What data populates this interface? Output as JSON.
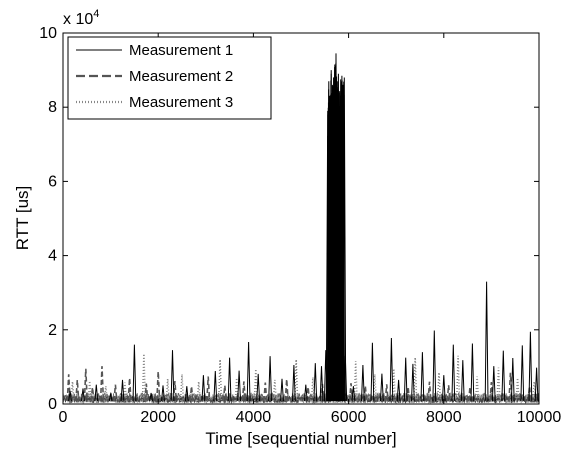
{
  "chart_data": {
    "type": "line",
    "xlabel": "Time [sequential number]",
    "ylabel": "RTT [us]",
    "y_multiplier_label": "x 10",
    "y_multiplier_exponent": "4",
    "xlim": [
      0,
      10000
    ],
    "ylim": [
      0,
      100000
    ],
    "x_ticks": [
      {
        "value": 0,
        "label": "0"
      },
      {
        "value": 2000,
        "label": "2000"
      },
      {
        "value": 4000,
        "label": "4000"
      },
      {
        "value": 6000,
        "label": "6000"
      },
      {
        "value": 8000,
        "label": "8000"
      },
      {
        "value": 10000,
        "label": "10000"
      }
    ],
    "y_ticks": [
      {
        "value": 0,
        "label": "0"
      },
      {
        "value": 20000,
        "label": "2"
      },
      {
        "value": 40000,
        "label": "4"
      },
      {
        "value": 60000,
        "label": "6"
      },
      {
        "value": 80000,
        "label": "8"
      },
      {
        "value": 100000,
        "label": "10"
      }
    ],
    "grid": false,
    "legend_position": "top-left",
    "baseline_rtt": [
      300,
      2000
    ],
    "series": [
      {
        "name": "Measurement 1",
        "style": "solid",
        "color": "#000000",
        "spikes": [
          [
            150,
            3500
          ],
          [
            420,
            4200
          ],
          [
            700,
            5200
          ],
          [
            1000,
            2800
          ],
          [
            1250,
            6500
          ],
          [
            1500,
            16000
          ],
          [
            1850,
            3000
          ],
          [
            2100,
            5000
          ],
          [
            2300,
            14500
          ],
          [
            2600,
            4800
          ],
          [
            2950,
            7800
          ],
          [
            3200,
            8900
          ],
          [
            3500,
            12500
          ],
          [
            3700,
            9000
          ],
          [
            3900,
            16700
          ],
          [
            4100,
            8100
          ],
          [
            4350,
            12900
          ],
          [
            4600,
            6800
          ],
          [
            4850,
            10500
          ],
          [
            5100,
            5200
          ],
          [
            5300,
            11000
          ],
          [
            5430,
            10200
          ],
          [
            5520,
            14500
          ],
          [
            5560,
            79000
          ],
          [
            5585,
            87000
          ],
          [
            5610,
            83000
          ],
          [
            5635,
            90000
          ],
          [
            5660,
            86000
          ],
          [
            5685,
            88000
          ],
          [
            5710,
            91500
          ],
          [
            5735,
            94500
          ],
          [
            5760,
            87000
          ],
          [
            5785,
            89000
          ],
          [
            5810,
            84000
          ],
          [
            5835,
            87500
          ],
          [
            5860,
            88500
          ],
          [
            5885,
            86000
          ],
          [
            5910,
            88000
          ],
          [
            5930,
            13000
          ],
          [
            6100,
            4800
          ],
          [
            6300,
            10500
          ],
          [
            6500,
            16500
          ],
          [
            6700,
            8200
          ],
          [
            6900,
            17800
          ],
          [
            7050,
            6500
          ],
          [
            7200,
            12500
          ],
          [
            7350,
            10800
          ],
          [
            7550,
            14000
          ],
          [
            7800,
            19800
          ],
          [
            8000,
            7800
          ],
          [
            8200,
            16000
          ],
          [
            8400,
            11800
          ],
          [
            8600,
            16300
          ],
          [
            8900,
            33000
          ],
          [
            9050,
            10200
          ],
          [
            9250,
            14400
          ],
          [
            9450,
            12400
          ],
          [
            9650,
            15800
          ],
          [
            9820,
            19500
          ],
          [
            9950,
            9800
          ]
        ]
      },
      {
        "name": "Measurement 2",
        "style": "dashed",
        "color": "#555555",
        "spikes": [
          [
            120,
            8000
          ],
          [
            300,
            6500
          ],
          [
            480,
            9500
          ],
          [
            620,
            4500
          ],
          [
            820,
            10200
          ],
          [
            1100,
            5200
          ],
          [
            1400,
            7000
          ],
          [
            1750,
            5500
          ],
          [
            2000,
            8800
          ],
          [
            2350,
            6200
          ],
          [
            2700,
            4800
          ],
          [
            3050,
            7400
          ],
          [
            3400,
            5000
          ],
          [
            3800,
            6100
          ],
          [
            4250,
            5800
          ],
          [
            4700,
            6700
          ],
          [
            5150,
            4600
          ],
          [
            5450,
            5400
          ],
          [
            6050,
            5600
          ],
          [
            6350,
            4900
          ],
          [
            6800,
            5300
          ],
          [
            7250,
            4700
          ],
          [
            7700,
            6000
          ],
          [
            8100,
            5100
          ],
          [
            8550,
            4600
          ],
          [
            9000,
            5900
          ],
          [
            9400,
            8400
          ],
          [
            9800,
            4800
          ]
        ]
      },
      {
        "name": "Measurement 3",
        "style": "dotted",
        "color": "#888888",
        "spikes": [
          [
            200,
            6000
          ],
          [
            560,
            6200
          ],
          [
            900,
            4800
          ],
          [
            1300,
            5800
          ],
          [
            1700,
            13500
          ],
          [
            2200,
            6800
          ],
          [
            2500,
            8000
          ],
          [
            2850,
            6000
          ],
          [
            3300,
            12000
          ],
          [
            3650,
            7000
          ],
          [
            4050,
            9400
          ],
          [
            4450,
            6500
          ],
          [
            4900,
            12000
          ],
          [
            5250,
            7200
          ],
          [
            6150,
            11500
          ],
          [
            6550,
            8000
          ],
          [
            6950,
            9500
          ],
          [
            7400,
            12500
          ],
          [
            7900,
            8500
          ],
          [
            8300,
            13000
          ],
          [
            8700,
            7400
          ],
          [
            9150,
            9800
          ],
          [
            9550,
            7000
          ],
          [
            9900,
            6000
          ]
        ]
      }
    ]
  }
}
